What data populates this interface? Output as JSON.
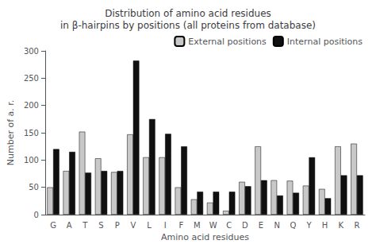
{
  "chart_data": {
    "type": "bar",
    "title": "Distribution of amino acid residues\nin β-hairpins by positions (all proteins from database)",
    "x_label": "Amino acid residues",
    "y_label": "Number of a. r.",
    "categories": [
      "G",
      "A",
      "T",
      "S",
      "P",
      "V",
      "L",
      "I",
      "F",
      "M",
      "W",
      "C",
      "D",
      "E",
      "N",
      "Q",
      "Y",
      "H",
      "K",
      "R"
    ],
    "series": [
      {
        "name": "External positions",
        "color": "#c8c8c8",
        "values": [
          50,
          80,
          152,
          103,
          78,
          147,
          105,
          105,
          50,
          28,
          22,
          7,
          60,
          125,
          63,
          62,
          53,
          47,
          125,
          130
        ]
      },
      {
        "name": "Internal positions",
        "color": "#101010",
        "values": [
          120,
          115,
          77,
          80,
          80,
          282,
          175,
          148,
          125,
          42,
          42,
          42,
          52,
          63,
          35,
          40,
          105,
          30,
          72,
          72
        ]
      }
    ],
    "ylim": [
      0,
      300
    ],
    "yticks": [
      0,
      50,
      100,
      150,
      200,
      250,
      300
    ],
    "grid": false,
    "legend": "upper right"
  }
}
